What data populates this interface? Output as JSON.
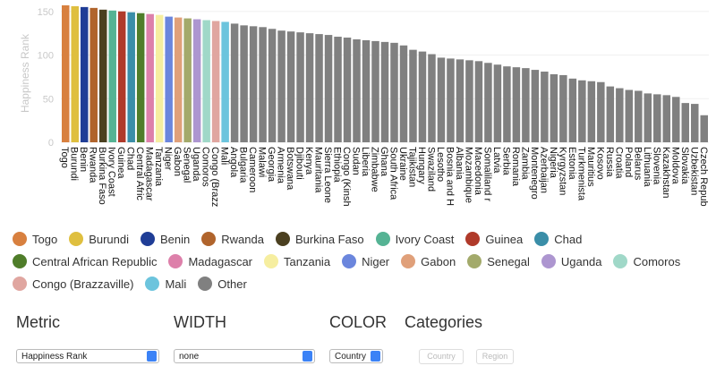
{
  "chart_data": {
    "type": "bar",
    "ylabel": "Happiness Rank",
    "categories": [
      "Togo",
      "Burundi",
      "Benin",
      "Rwanda",
      "Burkina Faso",
      "Ivory Coast",
      "Guinea",
      "Chad",
      "Central Afric",
      "Madagascar",
      "Tanzania",
      "Niger",
      "Gabon",
      "Senegal",
      "Uganda",
      "Comoros",
      "Congo (Brazz",
      "Mali",
      "Angola",
      "Bulgaria",
      "Cameroon",
      "Malawi",
      "Georgia",
      "Armenia",
      "Botswana",
      "Djibouti",
      "Kenya",
      "Mauritania",
      "Sierra Leone",
      "Ethiopia",
      "Congo (Kinsh",
      "Sudan",
      "Liberia",
      "Zimbabwe",
      "Ghana",
      "South Africa",
      "Ukraine",
      "Tajikistan",
      "Hungary",
      "Swaziland",
      "Lesotho",
      "Bosnia and H",
      "Albania",
      "Mozambique",
      "Macedonia",
      "Somaliland r",
      "Latvia",
      "Serbia",
      "Romania",
      "Zambia",
      "Montenegro",
      "Azerbaijan",
      "Nigeria",
      "Kyrgyzstan",
      "Estonia",
      "Turkmenista",
      "Mauritius",
      "Kosovo",
      "Russia",
      "Croatia",
      "Poland",
      "Belarus",
      "Lithuania",
      "Slovenia",
      "Kazakhstan",
      "Moldova",
      "Slovakia",
      "Uzbekistan",
      "Czech Repub"
    ],
    "values": [
      157,
      156,
      155,
      154,
      152,
      151,
      150,
      149,
      148,
      147,
      146,
      144,
      143,
      142,
      141,
      140,
      139,
      138,
      136,
      134,
      133,
      132,
      130,
      128,
      127,
      126,
      125,
      124,
      123,
      121,
      120,
      118,
      117,
      116,
      115,
      114,
      111,
      106,
      104,
      101,
      97,
      96,
      95,
      94,
      93,
      91,
      89,
      87,
      86,
      85,
      83,
      81,
      78,
      77,
      73,
      71,
      70,
      69,
      64,
      62,
      60,
      59,
      56,
      55,
      54,
      52,
      45,
      44,
      31
    ],
    "ylim": [
      0,
      160
    ],
    "yticks": [
      0,
      50,
      100,
      150
    ],
    "grid": true,
    "legend": [
      {
        "name": "Togo",
        "color": "#d8803f"
      },
      {
        "name": "Burundi",
        "color": "#dfbf3f"
      },
      {
        "name": "Benin",
        "color": "#1f3d96"
      },
      {
        "name": "Rwanda",
        "color": "#b0642c"
      },
      {
        "name": "Burkina Faso",
        "color": "#4b4020"
      },
      {
        "name": "Ivory Coast",
        "color": "#55b394"
      },
      {
        "name": "Guinea",
        "color": "#b03a2a"
      },
      {
        "name": "Chad",
        "color": "#3a8ea8"
      },
      {
        "name": "Central African Republic",
        "color": "#4f7d2a"
      },
      {
        "name": "Madagascar",
        "color": "#dd80aa"
      },
      {
        "name": "Tanzania",
        "color": "#f6eea0"
      },
      {
        "name": "Niger",
        "color": "#6b86dd"
      },
      {
        "name": "Gabon",
        "color": "#e0a07a"
      },
      {
        "name": "Senegal",
        "color": "#a3aa6b"
      },
      {
        "name": "Uganda",
        "color": "#ad96d0"
      },
      {
        "name": "Comoros",
        "color": "#a0d8c8"
      },
      {
        "name": "Congo (Brazzaville)",
        "color": "#e0a6a0"
      },
      {
        "name": "Mali",
        "color": "#6cc4dd"
      },
      {
        "name": "Other",
        "color": "#808080"
      }
    ]
  },
  "controls": {
    "metric": {
      "label": "Metric",
      "value": "Happiness Rank"
    },
    "width": {
      "label": "WIDTH",
      "value": "none"
    },
    "color": {
      "label": "COLOR",
      "value": "Country"
    },
    "categories": {
      "label": "Categories",
      "buttons": [
        "Country",
        "Region"
      ]
    }
  }
}
